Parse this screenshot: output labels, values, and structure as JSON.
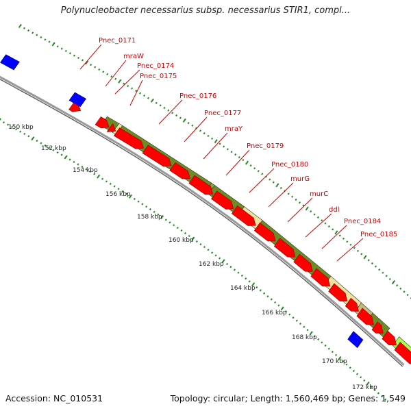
{
  "header": {
    "title": "Polynucleobacter necessarius subsp. necessarius STIR1, compl..."
  },
  "footer": {
    "accession": "Accession: NC_010531",
    "summary": "Topology: circular; Length: 1,560,469 bp; Genes: 1,549"
  },
  "colors": {
    "gene_label": "#cc0000",
    "gene_arrow": "#ff0000",
    "gene_arrow_border": "#aa0000",
    "reverse_gene": "#0000ff",
    "cog_dark": "#6b8e23",
    "cog_light": "#f0e3a0",
    "cog_tan": "#c8b878",
    "cog_lime": "#aaff44",
    "backbone": "#888888",
    "tick": "#228822"
  },
  "ticks": [
    "150 kbp",
    "152 kbp",
    "154 kbp",
    "156 kbp",
    "158 kbp",
    "160 kbp",
    "162 kbp",
    "164 kbp",
    "166 kbp",
    "168 kbp",
    "170 kbp",
    "172 kbp"
  ],
  "gene_labels": [
    "Pnec_0171",
    "mraW",
    "Pnec_0174",
    "Pnec_0175",
    "Pnec_0176",
    "Pnec_0177",
    "mraY",
    "Pnec_0179",
    "Pnec_0180",
    "murG",
    "murC",
    "ddl",
    "Pnec_0184",
    "Pnec_0185"
  ]
}
